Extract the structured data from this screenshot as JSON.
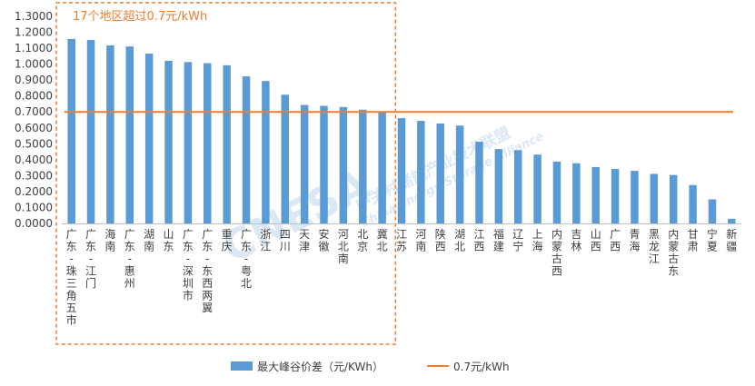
{
  "chart_data": {
    "type": "bar",
    "categories": [
      "广东-珠三角五市",
      "广东-江门",
      "海南",
      "广东-惠州",
      "湖南",
      "山东",
      "广东-深圳市",
      "广东-东西两翼",
      "重庆",
      "广东-粤北",
      "浙江",
      "四川",
      "天津",
      "安徽",
      "河北南",
      "北京",
      "冀北",
      "江苏",
      "河南",
      "陕西",
      "湖北",
      "江西",
      "福建",
      "辽宁",
      "上海",
      "内蒙古西",
      "吉林",
      "山西",
      "广西",
      "青海",
      "黑龙江",
      "内蒙古东",
      "甘肃",
      "宁夏",
      "新疆"
    ],
    "series": [
      {
        "name": "最大峰谷价差（元/KWh）",
        "color": "#5b9bd5",
        "values": [
          1.158,
          1.152,
          1.118,
          1.111,
          1.066,
          1.021,
          1.013,
          1.006,
          0.993,
          0.923,
          0.894,
          0.808,
          0.744,
          0.738,
          0.731,
          0.714,
          0.703,
          0.661,
          0.644,
          0.627,
          0.614,
          0.513,
          0.467,
          0.46,
          0.432,
          0.388,
          0.378,
          0.354,
          0.342,
          0.33,
          0.311,
          0.304,
          0.241,
          0.151,
          0.029
        ]
      },
      {
        "name": "0.7元/kWh",
        "color": "#ed7d31",
        "type": "line",
        "value": 0.7
      }
    ],
    "yticks": [
      "0.0000",
      "0.1000",
      "0.2000",
      "0.3000",
      "0.4000",
      "0.5000",
      "0.6000",
      "0.7000",
      "0.8000",
      "0.9000",
      "1.0000",
      "1.1000",
      "1.2000",
      "1.3000"
    ],
    "ylim": [
      0,
      1.3
    ],
    "annotation": "17个地区超过0.7元/kWh",
    "highlight_count": 17,
    "grid": false,
    "legend_position": "bottom",
    "title": "",
    "xlabel": "",
    "ylabel": ""
  },
  "watermark": {
    "logo": "CNESA",
    "cn": "中关村储能产业技术联盟",
    "en": "China Energy Storage Alliance"
  },
  "colors": {
    "bar": "#5b9bd5",
    "line": "#ed7d31",
    "axis": "#bfbfbf",
    "text": "#404040"
  }
}
